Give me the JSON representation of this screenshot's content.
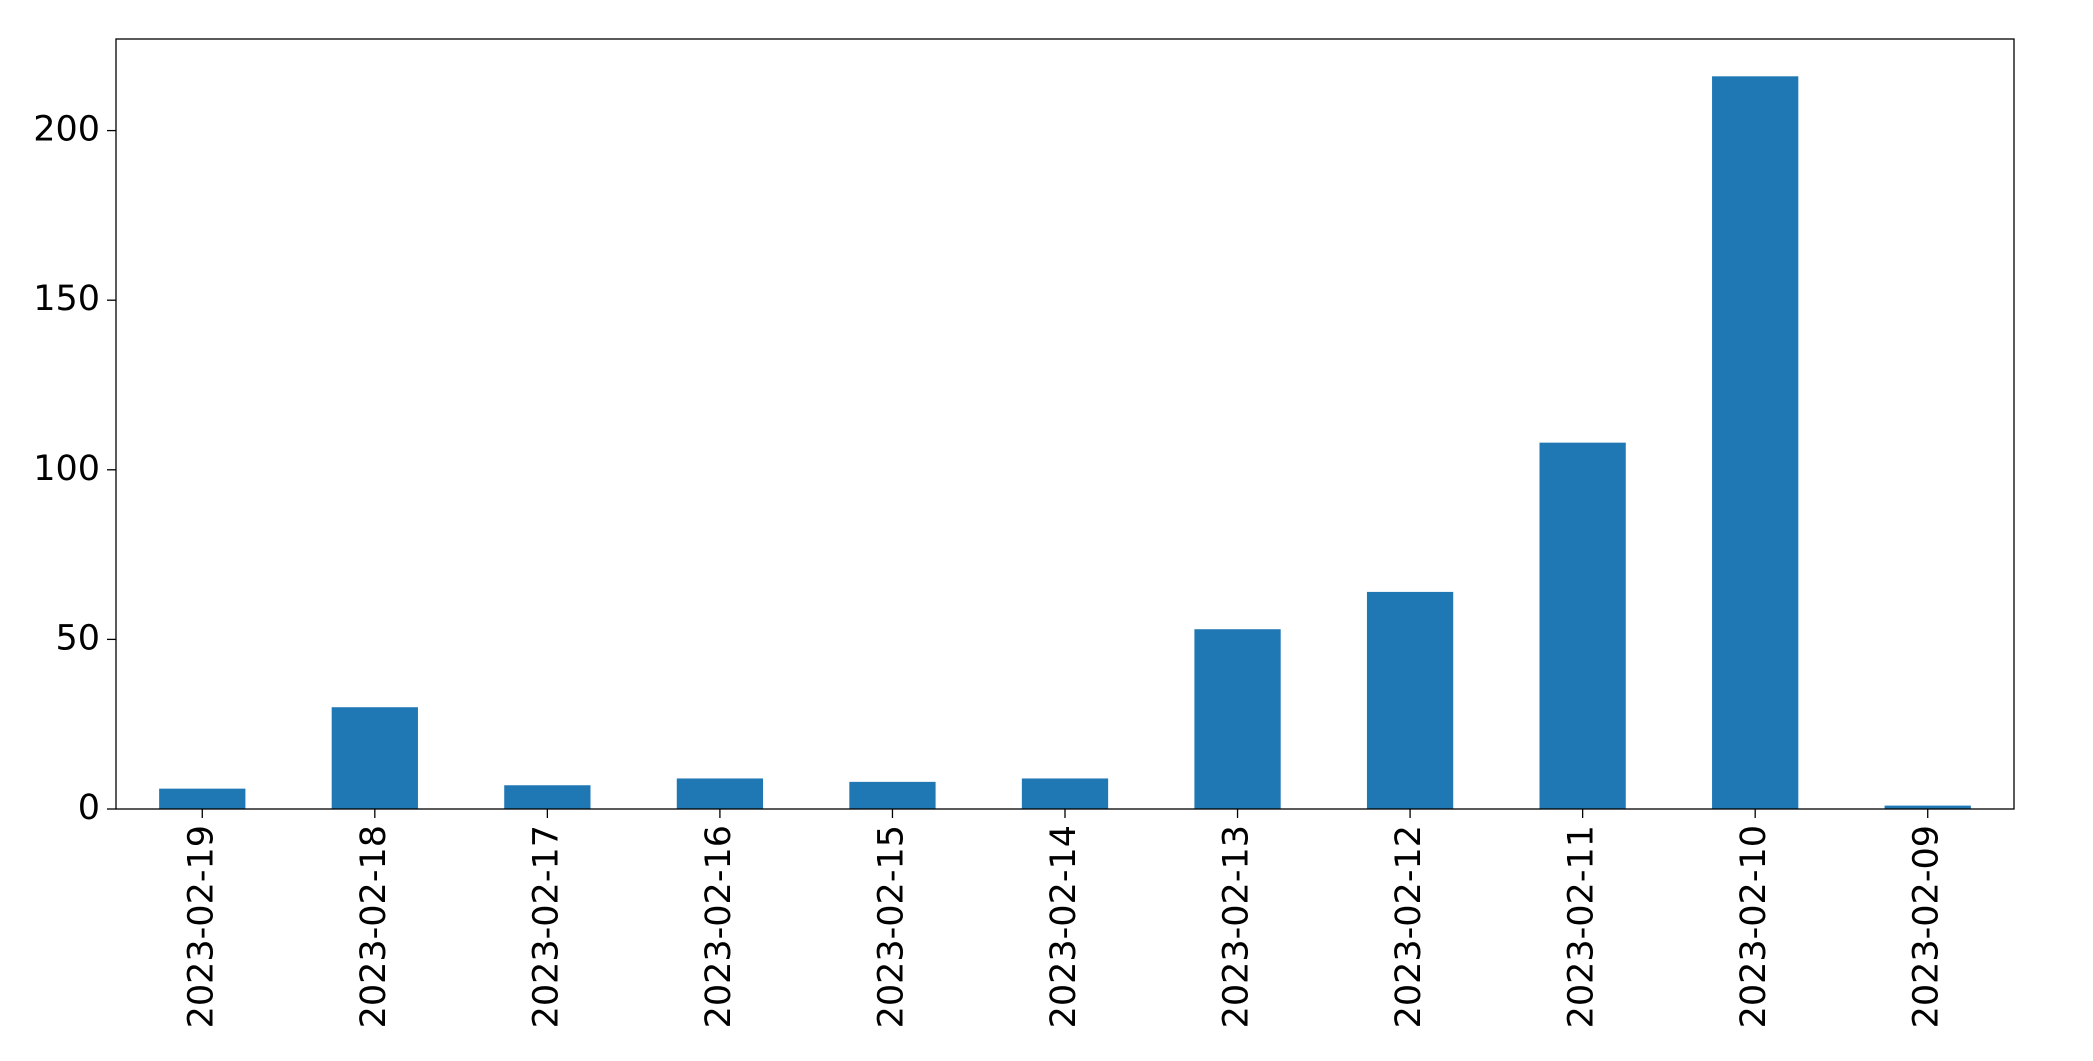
{
  "chart_data": {
    "type": "bar",
    "categories": [
      "2023-02-19",
      "2023-02-18",
      "2023-02-17",
      "2023-02-16",
      "2023-02-15",
      "2023-02-14",
      "2023-02-13",
      "2023-02-12",
      "2023-02-11",
      "2023-02-10",
      "2023-02-09"
    ],
    "values": [
      6,
      30,
      7,
      9,
      8,
      9,
      53,
      64,
      108,
      216,
      1
    ],
    "color": "#1f77b4",
    "ylim": [
      0,
      227
    ],
    "yticks": [
      0,
      50,
      100,
      150,
      200
    ],
    "grid": false
  }
}
